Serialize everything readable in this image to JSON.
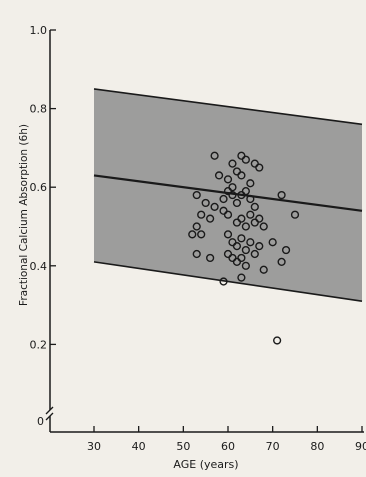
{
  "chart_data": {
    "type": "scatter",
    "xlabel": "AGE (years)",
    "ylabel": "Fractional Calcium Absorption (6h)",
    "xlim": [
      30,
      90
    ],
    "ylim": [
      0,
      1.0
    ],
    "x_ticks": [
      30,
      40,
      50,
      60,
      70,
      80,
      90
    ],
    "x_tick_labels": [
      "30",
      "40",
      "50",
      "60",
      "70",
      "80",
      "90"
    ],
    "y_ticks": [
      0.2,
      0.4,
      0.6,
      0.8,
      1.0
    ],
    "y_tick_labels": [
      "0.2",
      "0.4",
      "0.6",
      "0.8",
      "1.0"
    ],
    "y_axis_break": true,
    "y_origin_label": "0",
    "reference_band": {
      "upper": {
        "x": [
          30,
          90
        ],
        "y": [
          0.85,
          0.76
        ]
      },
      "lower": {
        "x": [
          30,
          90
        ],
        "y": [
          0.41,
          0.31
        ]
      },
      "color": "#8e8e8e"
    },
    "reference_line": {
      "x": [
        30,
        90
      ],
      "y": [
        0.63,
        0.54
      ]
    },
    "series": [
      {
        "marker": "open-circle",
        "points": [
          [
            57,
            0.68
          ],
          [
            61,
            0.66
          ],
          [
            62,
            0.64
          ],
          [
            63,
            0.68
          ],
          [
            64,
            0.67
          ],
          [
            66,
            0.66
          ],
          [
            67,
            0.65
          ],
          [
            58,
            0.63
          ],
          [
            60,
            0.62
          ],
          [
            61,
            0.6
          ],
          [
            63,
            0.63
          ],
          [
            65,
            0.61
          ],
          [
            53,
            0.58
          ],
          [
            55,
            0.56
          ],
          [
            57,
            0.55
          ],
          [
            59,
            0.57
          ],
          [
            60,
            0.59
          ],
          [
            61,
            0.58
          ],
          [
            62,
            0.56
          ],
          [
            63,
            0.58
          ],
          [
            64,
            0.59
          ],
          [
            65,
            0.57
          ],
          [
            66,
            0.55
          ],
          [
            72,
            0.58
          ],
          [
            54,
            0.53
          ],
          [
            56,
            0.52
          ],
          [
            59,
            0.54
          ],
          [
            60,
            0.53
          ],
          [
            62,
            0.51
          ],
          [
            63,
            0.52
          ],
          [
            64,
            0.5
          ],
          [
            65,
            0.53
          ],
          [
            66,
            0.51
          ],
          [
            67,
            0.52
          ],
          [
            68,
            0.5
          ],
          [
            75,
            0.53
          ],
          [
            53,
            0.5
          ],
          [
            52,
            0.48
          ],
          [
            54,
            0.48
          ],
          [
            60,
            0.48
          ],
          [
            61,
            0.46
          ],
          [
            62,
            0.45
          ],
          [
            63,
            0.47
          ],
          [
            64,
            0.44
          ],
          [
            65,
            0.46
          ],
          [
            66,
            0.43
          ],
          [
            67,
            0.45
          ],
          [
            70,
            0.46
          ],
          [
            73,
            0.44
          ],
          [
            53,
            0.43
          ],
          [
            56,
            0.42
          ],
          [
            60,
            0.43
          ],
          [
            61,
            0.42
          ],
          [
            62,
            0.41
          ],
          [
            63,
            0.42
          ],
          [
            64,
            0.4
          ],
          [
            68,
            0.39
          ],
          [
            72,
            0.41
          ],
          [
            59,
            0.36
          ],
          [
            63,
            0.37
          ],
          [
            71,
            0.21
          ]
        ]
      }
    ],
    "colors": {
      "background": "#f2efe9",
      "band": "#8e8e8e",
      "ink": "#1a1a1a"
    }
  }
}
